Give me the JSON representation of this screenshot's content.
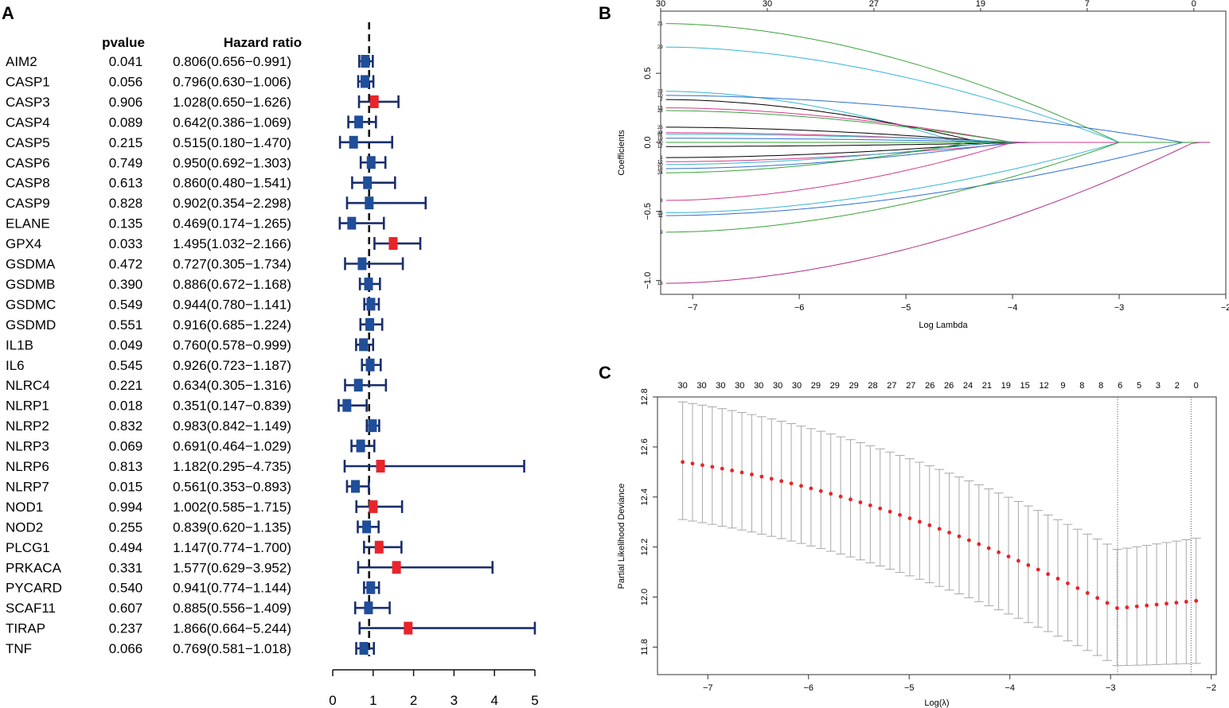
{
  "chart_data": [
    {
      "panel": "A",
      "type": "forest",
      "header": {
        "pvalue": "pvalue",
        "hr": "Hazard ratio"
      },
      "xlim": [
        0,
        5
      ],
      "ticks": [
        "0",
        "1",
        "2",
        "3",
        "4",
        "5"
      ],
      "reference_line": 0.9,
      "colors": {
        "protective": "#1f4e9a",
        "risk": "#e8242b",
        "ci": "#1a2e6b"
      },
      "rows": [
        {
          "gene": "AIM2",
          "pvalue": "0.041",
          "hr_text": "0.806(0.656−0.991)",
          "hr": 0.806,
          "lo": 0.656,
          "hi": 0.991
        },
        {
          "gene": "CASP1",
          "pvalue": "0.056",
          "hr_text": "0.796(0.630−1.006)",
          "hr": 0.796,
          "lo": 0.63,
          "hi": 1.006
        },
        {
          "gene": "CASP3",
          "pvalue": "0.906",
          "hr_text": "1.028(0.650−1.626)",
          "hr": 1.028,
          "lo": 0.65,
          "hi": 1.626
        },
        {
          "gene": "CASP4",
          "pvalue": "0.089",
          "hr_text": "0.642(0.386−1.069)",
          "hr": 0.642,
          "lo": 0.386,
          "hi": 1.069
        },
        {
          "gene": "CASP5",
          "pvalue": "0.215",
          "hr_text": "0.515(0.180−1.470)",
          "hr": 0.515,
          "lo": 0.18,
          "hi": 1.47
        },
        {
          "gene": "CASP6",
          "pvalue": "0.749",
          "hr_text": "0.950(0.692−1.303)",
          "hr": 0.95,
          "lo": 0.692,
          "hi": 1.303
        },
        {
          "gene": "CASP8",
          "pvalue": "0.613",
          "hr_text": "0.860(0.480−1.541)",
          "hr": 0.86,
          "lo": 0.48,
          "hi": 1.541
        },
        {
          "gene": "CASP9",
          "pvalue": "0.828",
          "hr_text": "0.902(0.354−2.298)",
          "hr": 0.902,
          "lo": 0.354,
          "hi": 2.298
        },
        {
          "gene": "ELANE",
          "pvalue": "0.135",
          "hr_text": "0.469(0.174−1.265)",
          "hr": 0.469,
          "lo": 0.174,
          "hi": 1.265
        },
        {
          "gene": "GPX4",
          "pvalue": "0.033",
          "hr_text": "1.495(1.032−2.166)",
          "hr": 1.495,
          "lo": 1.032,
          "hi": 2.166
        },
        {
          "gene": "GSDMA",
          "pvalue": "0.472",
          "hr_text": "0.727(0.305−1.734)",
          "hr": 0.727,
          "lo": 0.305,
          "hi": 1.734
        },
        {
          "gene": "GSDMB",
          "pvalue": "0.390",
          "hr_text": "0.886(0.672−1.168)",
          "hr": 0.886,
          "lo": 0.672,
          "hi": 1.168
        },
        {
          "gene": "GSDMC",
          "pvalue": "0.549",
          "hr_text": "0.944(0.780−1.141)",
          "hr": 0.944,
          "lo": 0.78,
          "hi": 1.141
        },
        {
          "gene": "GSDMD",
          "pvalue": "0.551",
          "hr_text": "0.916(0.685−1.224)",
          "hr": 0.916,
          "lo": 0.685,
          "hi": 1.224
        },
        {
          "gene": "IL1B",
          "pvalue": "0.049",
          "hr_text": "0.760(0.578−0.999)",
          "hr": 0.76,
          "lo": 0.578,
          "hi": 0.999
        },
        {
          "gene": "IL6",
          "pvalue": "0.545",
          "hr_text": "0.926(0.723−1.187)",
          "hr": 0.926,
          "lo": 0.723,
          "hi": 1.187
        },
        {
          "gene": "NLRC4",
          "pvalue": "0.221",
          "hr_text": "0.634(0.305−1.316)",
          "hr": 0.634,
          "lo": 0.305,
          "hi": 1.316
        },
        {
          "gene": "NLRP1",
          "pvalue": "0.018",
          "hr_text": "0.351(0.147−0.839)",
          "hr": 0.351,
          "lo": 0.147,
          "hi": 0.839
        },
        {
          "gene": "NLRP2",
          "pvalue": "0.832",
          "hr_text": "0.983(0.842−1.149)",
          "hr": 0.983,
          "lo": 0.842,
          "hi": 1.149
        },
        {
          "gene": "NLRP3",
          "pvalue": "0.069",
          "hr_text": "0.691(0.464−1.029)",
          "hr": 0.691,
          "lo": 0.464,
          "hi": 1.029
        },
        {
          "gene": "NLRP6",
          "pvalue": "0.813",
          "hr_text": "1.182(0.295−4.735)",
          "hr": 1.182,
          "lo": 0.295,
          "hi": 4.735
        },
        {
          "gene": "NLRP7",
          "pvalue": "0.015",
          "hr_text": "0.561(0.353−0.893)",
          "hr": 0.561,
          "lo": 0.353,
          "hi": 0.893
        },
        {
          "gene": "NOD1",
          "pvalue": "0.994",
          "hr_text": "1.002(0.585−1.715)",
          "hr": 1.002,
          "lo": 0.585,
          "hi": 1.715
        },
        {
          "gene": "NOD2",
          "pvalue": "0.255",
          "hr_text": "0.839(0.620−1.135)",
          "hr": 0.839,
          "lo": 0.62,
          "hi": 1.135
        },
        {
          "gene": "PLCG1",
          "pvalue": "0.494",
          "hr_text": "1.147(0.774−1.700)",
          "hr": 1.147,
          "lo": 0.774,
          "hi": 1.7
        },
        {
          "gene": "PRKACA",
          "pvalue": "0.331",
          "hr_text": "1.577(0.629−3.952)",
          "hr": 1.577,
          "lo": 0.629,
          "hi": 3.952
        },
        {
          "gene": "PYCARD",
          "pvalue": "0.540",
          "hr_text": "0.941(0.774−1.144)",
          "hr": 0.941,
          "lo": 0.774,
          "hi": 1.144
        },
        {
          "gene": "SCAF11",
          "pvalue": "0.607",
          "hr_text": "0.885(0.556−1.409)",
          "hr": 0.885,
          "lo": 0.556,
          "hi": 1.409
        },
        {
          "gene": "TIRAP",
          "pvalue": "0.237",
          "hr_text": "1.866(0.664−5.244)",
          "hr": 1.866,
          "lo": 0.664,
          "hi": 5.244
        },
        {
          "gene": "TNF",
          "pvalue": "0.066",
          "hr_text": "0.769(0.581−1.018)",
          "hr": 0.769,
          "lo": 0.581,
          "hi": 1.018
        }
      ]
    },
    {
      "panel": "B",
      "type": "line",
      "xlabel": "Log Lambda",
      "ylabel": "Coefficients",
      "xlim": [
        -7.3,
        -2.0
      ],
      "ylim": [
        -1.1,
        0.95
      ],
      "xticks": [
        -7,
        -6,
        -5,
        -4,
        -3,
        -2
      ],
      "xtick_labels": [
        "−7",
        "−6",
        "−5",
        "−4",
        "−3",
        "−2"
      ],
      "yticks": [
        -1.0,
        -0.5,
        0.0,
        0.5
      ],
      "ytick_labels": [
        "−1.0",
        "−0.5",
        "0.0",
        "0.5"
      ],
      "top_ticks": [
        -7.3,
        -6.3,
        -5.3,
        -4.3,
        -3.3,
        -2.3
      ],
      "top_labels": [
        "30",
        "30",
        "27",
        "19",
        "7",
        "0"
      ],
      "lambda_max": -2.15,
      "series": [
        {
          "label": "21",
          "start": 0.86,
          "end": -3.0,
          "color": "#3aa33a"
        },
        {
          "label": "29",
          "start": 0.69,
          "end": -3.0,
          "color": "#36b6d3"
        },
        {
          "label": "23",
          "start": 0.37,
          "end": -4.5,
          "color": "#36b6d3"
        },
        {
          "label": "10",
          "start": 0.34,
          "end": -2.4,
          "color": "#2f6fd1"
        },
        {
          "label": "7",
          "start": 0.31,
          "end": -4.3,
          "color": "#000000"
        },
        {
          "label": "15",
          "start": 0.25,
          "end": -4.0,
          "color": "#d23a8a"
        },
        {
          "label": "28",
          "start": 0.23,
          "end": -4.0,
          "color": "#3aa33a"
        },
        {
          "label": "25",
          "start": 0.11,
          "end": -4.1,
          "color": "#000000"
        },
        {
          "label": "27",
          "start": 0.07,
          "end": -4.0,
          "color": "#d23a8a"
        },
        {
          "label": "22",
          "start": 0.06,
          "end": -3.9,
          "color": "#36b6d3"
        },
        {
          "label": "19",
          "start": 0.03,
          "end": -3.9,
          "color": "#2f6fd1"
        },
        {
          "label": "30",
          "start": 0.0,
          "end": -3.8,
          "color": "#3aa33a"
        },
        {
          "label": "17",
          "start": -0.03,
          "end": -3.8,
          "color": "#000000"
        },
        {
          "label": "1",
          "start": -0.11,
          "end": -4.1,
          "color": "#000000"
        },
        {
          "label": "12",
          "start": -0.14,
          "end": -3.9,
          "color": "#d23a8a"
        },
        {
          "label": "20",
          "start": -0.16,
          "end": -4.2,
          "color": "#36b6d3"
        },
        {
          "label": "18",
          "start": -0.19,
          "end": -4.0,
          "color": "#2f6fd1"
        },
        {
          "label": "24",
          "start": -0.22,
          "end": -4.4,
          "color": "#3aa33a"
        },
        {
          "label": "8",
          "start": -0.42,
          "end": -4.0,
          "color": "#d23a8a"
        },
        {
          "label": "26",
          "start": -0.51,
          "end": -3.0,
          "color": "#36b6d3"
        },
        {
          "label": "11",
          "start": -0.53,
          "end": -2.4,
          "color": "#2f6fd1"
        },
        {
          "label": "9",
          "start": -0.65,
          "end": -3.0,
          "color": "#3aa33a"
        },
        {
          "label": "16",
          "start": -1.02,
          "end": -2.3,
          "color": "#b02f8a"
        }
      ]
    },
    {
      "panel": "C",
      "type": "errorbar",
      "xlabel": "Log(λ)",
      "ylabel": "Partial Likelihood Deviance",
      "xlim": [
        -7.5,
        -1.95
      ],
      "ylim": [
        11.69,
        12.8
      ],
      "xticks": [
        -7,
        -6,
        -5,
        -4,
        -3,
        -2
      ],
      "xtick_labels": [
        "−7",
        "−6",
        "−5",
        "−4",
        "−3",
        "−2"
      ],
      "yticks": [
        11.8,
        12.0,
        12.2,
        12.4,
        12.6,
        12.8
      ],
      "ytick_labels": [
        "11.8",
        "12.0",
        "12.2",
        "12.4",
        "12.6",
        "12.8"
      ],
      "top_labels": [
        "30",
        "30",
        "30",
        "30",
        "30",
        "30",
        "30",
        "29",
        "29",
        "29",
        "28",
        "27",
        "27",
        "26",
        "26",
        "24",
        "21",
        "19",
        "15",
        "12",
        "9",
        "8",
        "8",
        "6",
        "5",
        "3",
        "2",
        "0"
      ],
      "lambda_min": -2.93,
      "lambda_1se": -2.2,
      "lambda_range": [
        -7.25,
        -2.15
      ],
      "n_points": 53,
      "mean_start": 12.54,
      "mean_min": 11.955,
      "mean_end": 11.985,
      "upper_start": 12.78,
      "upper_min": 12.19,
      "upper_end": 12.235,
      "lower_start": 12.31,
      "lower_min": 11.725,
      "lower_end": 11.735,
      "colors": {
        "points": "#e8242b",
        "bars": "#a8a8a8"
      }
    }
  ],
  "panel_letters": [
    "A",
    "B",
    "C"
  ]
}
